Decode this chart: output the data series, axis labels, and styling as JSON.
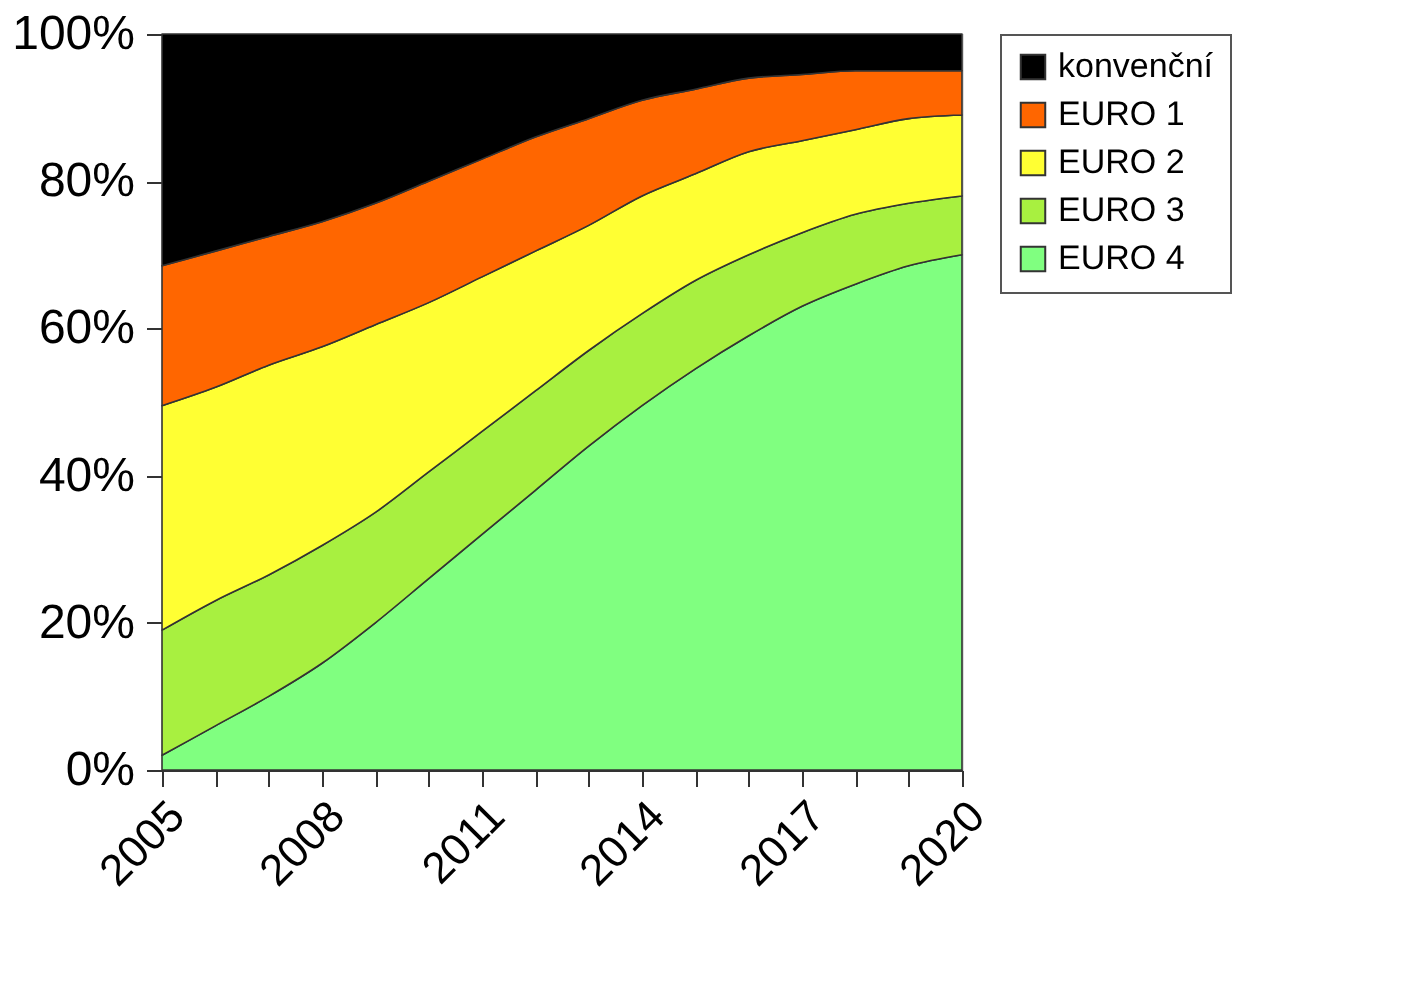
{
  "chart_data": {
    "type": "area",
    "stacked": true,
    "legend": "right",
    "x": [
      2005,
      2006,
      2007,
      2008,
      2009,
      2010,
      2011,
      2012,
      2013,
      2014,
      2015,
      2016,
      2017,
      2018,
      2019,
      2020
    ],
    "xlim": [
      2005,
      2020
    ],
    "xticks": [
      2005,
      {
        "value": 2006,
        "label": null
      },
      {
        "value": 2007,
        "label": null
      },
      2008,
      {
        "value": 2009,
        "label": null
      },
      {
        "value": 2010,
        "label": null
      },
      2011,
      {
        "value": 2012,
        "label": null
      },
      {
        "value": 2013,
        "label": null
      },
      2014,
      {
        "value": 2015,
        "label": null
      },
      {
        "value": 2016,
        "label": null
      },
      2017,
      {
        "value": 2018,
        "label": null
      },
      {
        "value": 2019,
        "label": null
      },
      2020
    ],
    "ylim": [
      0,
      100
    ],
    "yticks": [
      {
        "value": 0,
        "label": "0%"
      },
      {
        "value": 20,
        "label": "20%"
      },
      {
        "value": 40,
        "label": "40%"
      },
      {
        "value": 60,
        "label": "60%"
      },
      {
        "value": 80,
        "label": "80%"
      },
      {
        "value": 100,
        "label": "100%"
      }
    ],
    "series": [
      {
        "name": "EURO 4",
        "color": "#80ff80",
        "values": [
          2,
          6,
          10,
          14.5,
          20,
          26,
          32,
          38,
          44,
          49.5,
          54.5,
          59,
          63,
          66,
          68.5,
          70
        ]
      },
      {
        "name": "EURO 3",
        "color": "#a8f040",
        "values": [
          17,
          17,
          16.5,
          16,
          15,
          14.5,
          14,
          13.5,
          13,
          12.5,
          12,
          11,
          10,
          9.5,
          8.5,
          8
        ]
      },
      {
        "name": "EURO 2",
        "color": "#ffff33",
        "values": [
          30.5,
          29,
          28.5,
          27,
          25.5,
          23,
          21,
          19,
          17,
          16,
          14.5,
          14,
          12.5,
          11.5,
          11.5,
          11
        ]
      },
      {
        "name": "EURO 1",
        "color": "#ff6600",
        "values": [
          19,
          18.5,
          17.5,
          17,
          16.5,
          16.5,
          16,
          15.5,
          14.5,
          13,
          11.5,
          10,
          9,
          8,
          6.5,
          6
        ]
      },
      {
        "name": "konvenční",
        "color": "#000000",
        "values": [
          31.5,
          29.5,
          27.5,
          25.5,
          23,
          20,
          17,
          14,
          11.5,
          9,
          7.5,
          6,
          5.5,
          5,
          5,
          5
        ]
      }
    ]
  }
}
